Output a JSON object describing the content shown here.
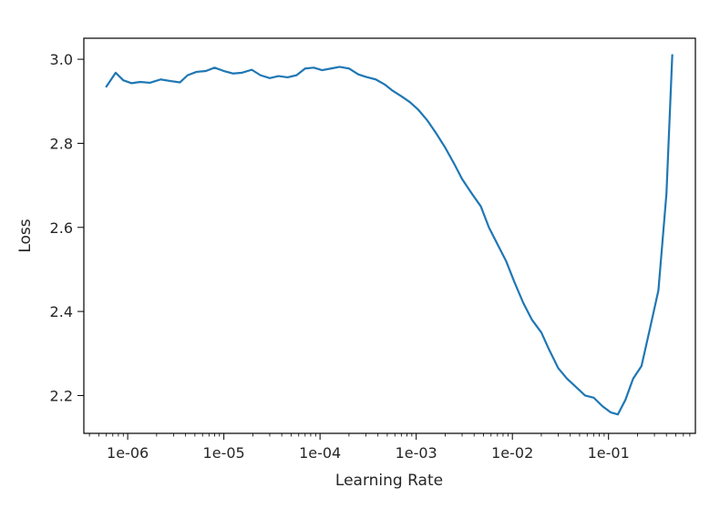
{
  "chart_data": {
    "type": "line",
    "title": "",
    "xlabel": "Learning Rate",
    "ylabel": "Loss",
    "xscale": "log",
    "xlim": [
      3.5e-07,
      0.8
    ],
    "ylim": [
      2.11,
      3.05
    ],
    "grid": false,
    "x_ticks": [
      1e-06,
      1e-05,
      0.0001,
      0.001,
      0.01,
      0.1
    ],
    "x_tick_labels": [
      "1e-06",
      "1e-05",
      "1e-04",
      "1e-03",
      "1e-02",
      "1e-01"
    ],
    "y_ticks": [
      2.2,
      2.4,
      2.6,
      2.8,
      3.0
    ],
    "y_tick_labels": [
      "2.2",
      "2.4",
      "2.6",
      "2.8",
      "3.0"
    ],
    "line_color": "#1f77b4",
    "series": [
      {
        "x": [
          6e-07,
          7.5e-07,
          9e-07,
          1.1e-06,
          1.35e-06,
          1.7e-06,
          2.2e-06,
          2.8e-06,
          3.5e-06,
          4.2e-06,
          5.2e-06,
          6.5e-06,
          8e-06,
          1e-05,
          1.25e-05,
          1.55e-05,
          1.95e-05,
          2.4e-05,
          3e-05,
          3.7e-05,
          4.6e-05,
          5.7e-05,
          7e-05,
          8.6e-05,
          0.000105,
          0.00013,
          0.00016,
          0.0002,
          0.00025,
          0.0003,
          0.00038,
          0.00047,
          0.00057,
          0.0007,
          0.00086,
          0.00105,
          0.0013,
          0.0016,
          0.002,
          0.0025,
          0.003,
          0.0038,
          0.0047,
          0.0057,
          0.007,
          0.0086,
          0.0105,
          0.013,
          0.016,
          0.02,
          0.024,
          0.03,
          0.037,
          0.046,
          0.057,
          0.07,
          0.086,
          0.105,
          0.125,
          0.15,
          0.18,
          0.22,
          0.27,
          0.33,
          0.4,
          0.46
        ],
        "y": [
          2.935,
          2.968,
          2.95,
          2.943,
          2.946,
          2.944,
          2.952,
          2.948,
          2.945,
          2.962,
          2.97,
          2.972,
          2.98,
          2.972,
          2.966,
          2.968,
          2.975,
          2.962,
          2.955,
          2.96,
          2.957,
          2.962,
          2.978,
          2.98,
          2.974,
          2.978,
          2.982,
          2.978,
          2.964,
          2.958,
          2.952,
          2.94,
          2.925,
          2.912,
          2.898,
          2.88,
          2.855,
          2.825,
          2.79,
          2.75,
          2.715,
          2.68,
          2.65,
          2.6,
          2.56,
          2.52,
          2.47,
          2.42,
          2.38,
          2.35,
          2.31,
          2.265,
          2.24,
          2.22,
          2.2,
          2.195,
          2.175,
          2.16,
          2.155,
          2.19,
          2.24,
          2.27,
          2.36,
          2.45,
          2.68,
          3.01
        ]
      }
    ]
  }
}
